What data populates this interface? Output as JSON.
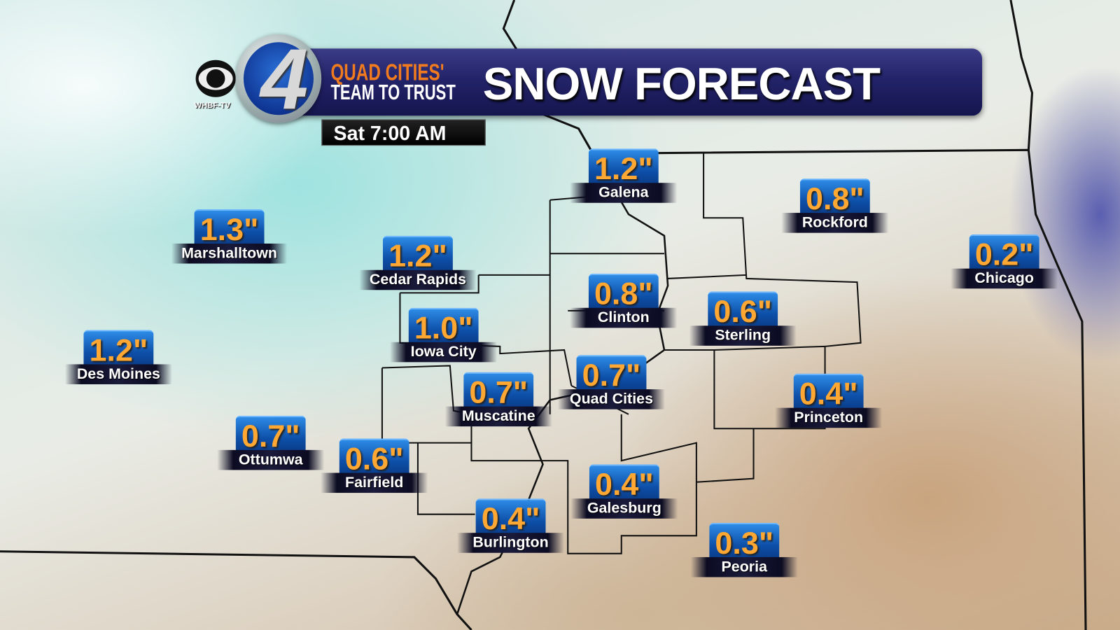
{
  "header": {
    "title": "SNOW FORECAST",
    "tagline_1": "QUAD CITIES'",
    "tagline_2": "TEAM TO TRUST",
    "station": "WHBF-TV",
    "channel": "4",
    "valid_time": "Sat 7:00 AM"
  },
  "colors": {
    "value_text": "#ffa733",
    "value_box": "#1c6fcf",
    "banner": "#23236a",
    "label_bar": "#0b0b22"
  },
  "cities": [
    {
      "name": "Galena",
      "value": "1.2\""
    },
    {
      "name": "Rockford",
      "value": "0.8\""
    },
    {
      "name": "Marshalltown",
      "value": "1.3\""
    },
    {
      "name": "Cedar Rapids",
      "value": "1.2\""
    },
    {
      "name": "Chicago",
      "value": "0.2\""
    },
    {
      "name": "Clinton",
      "value": "0.8\""
    },
    {
      "name": "Sterling",
      "value": "0.6\""
    },
    {
      "name": "Iowa City",
      "value": "1.0\""
    },
    {
      "name": "Des Moines",
      "value": "1.2\""
    },
    {
      "name": "Quad Cities",
      "value": "0.7\""
    },
    {
      "name": "Muscatine",
      "value": "0.7\""
    },
    {
      "name": "Princeton",
      "value": "0.4\""
    },
    {
      "name": "Ottumwa",
      "value": "0.7\""
    },
    {
      "name": "Fairfield",
      "value": "0.6\""
    },
    {
      "name": "Galesburg",
      "value": "0.4\""
    },
    {
      "name": "Burlington",
      "value": "0.4\""
    },
    {
      "name": "Peoria",
      "value": "0.3\""
    }
  ]
}
